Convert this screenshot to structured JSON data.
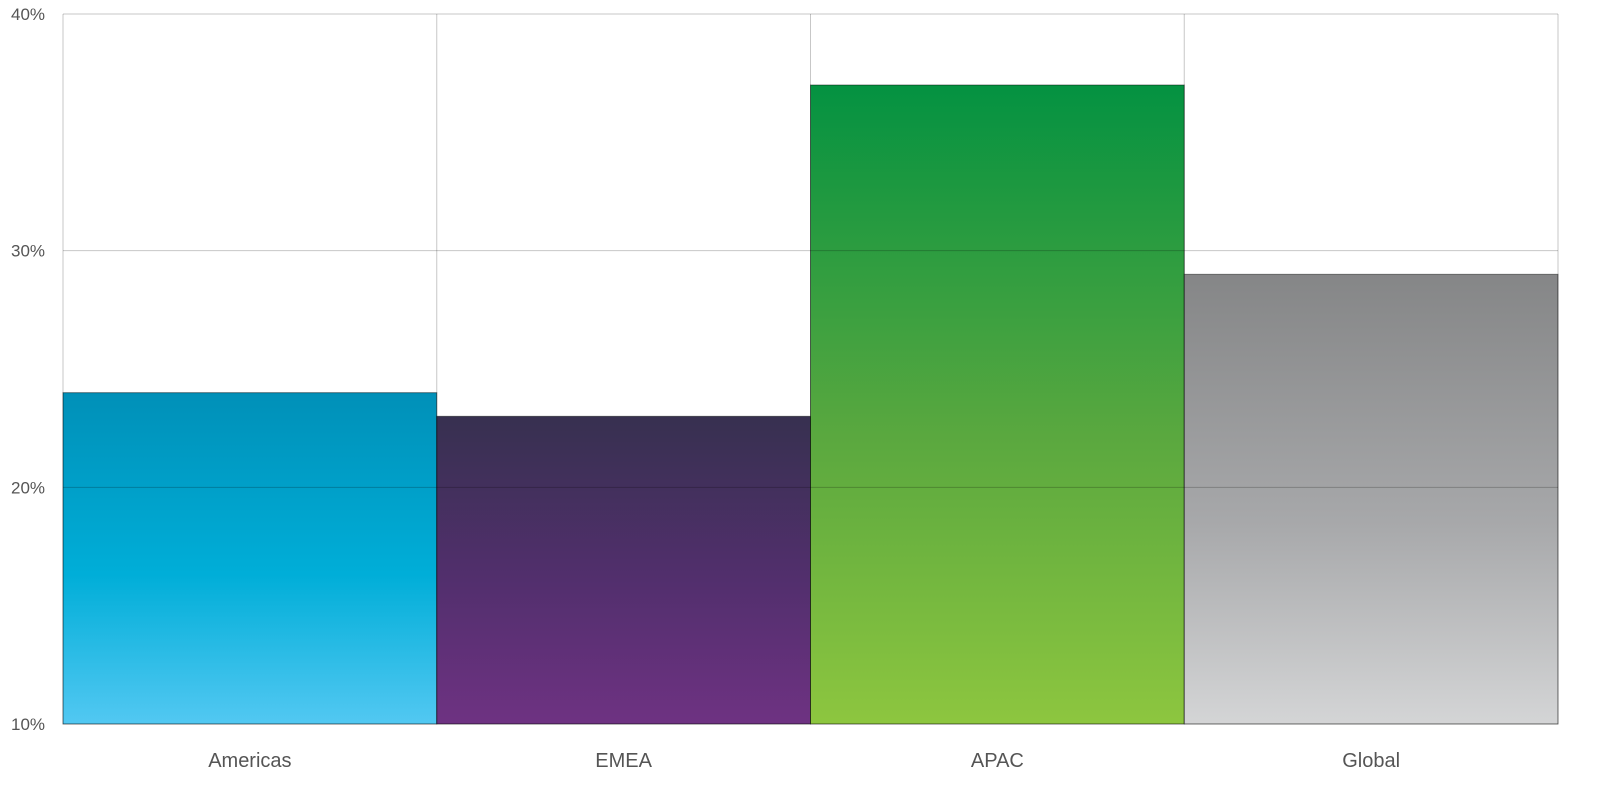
{
  "chart_data": {
    "type": "bar",
    "categories": [
      "Americas",
      "EMEA",
      "APAC",
      "Global"
    ],
    "values": [
      24,
      23,
      37,
      29
    ],
    "ylim": [
      10,
      40
    ],
    "yticks": [
      10,
      20,
      30,
      40
    ],
    "ytick_labels": [
      "10%",
      "20%",
      "30%",
      "40%"
    ],
    "grid": true,
    "bar_gradients": [
      {
        "top": "#0090b8",
        "mid": "#00aed8",
        "bottom": "#52c8f2"
      },
      {
        "top": "#373050",
        "mid": "#532f6e",
        "bottom": "#6e3282"
      },
      {
        "top": "#049241",
        "mid": "#5aa83f",
        "bottom": "#8dc63f"
      },
      {
        "top": "#858687",
        "mid": "#a7a8aa",
        "bottom": "#d4d5d6"
      }
    ]
  }
}
